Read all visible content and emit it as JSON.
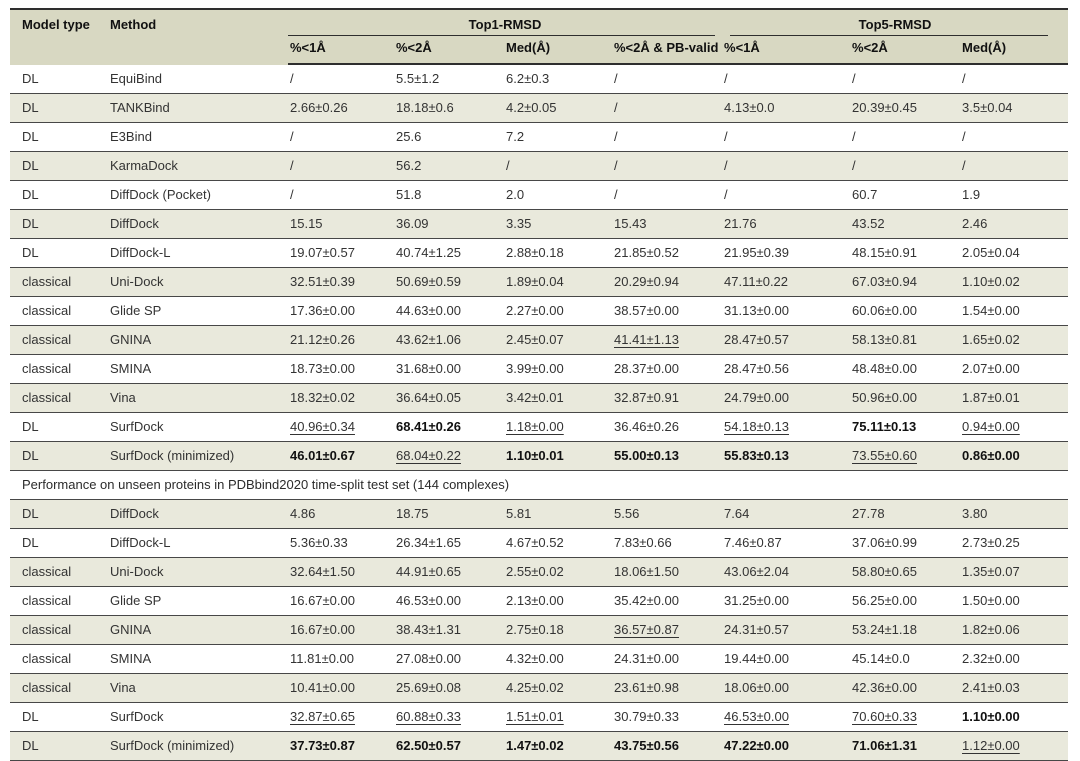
{
  "colors": {
    "header_bg": "#d8d8c2",
    "stripe_bg": "#e9e9dc",
    "rule_dark": "#2e2e2e",
    "row_line": "#474747",
    "text": "#333333",
    "text_strong": "#111111"
  },
  "table": {
    "header": {
      "model_type": "Model type",
      "method": "Method",
      "top1_group": "Top1-RMSD",
      "top5_group": "Top5-RMSD",
      "sub": [
        "%<1Å",
        "%<2Å",
        "Med(Å)",
        "%<2Å & PB-valid",
        "%<1Å",
        "%<2Å",
        "Med(Å)"
      ]
    },
    "rows": [
      {
        "type": "DL",
        "method": "EquiBind",
        "v": [
          "/",
          "5.5±1.2",
          "6.2±0.3",
          "/",
          "/",
          "/",
          "/"
        ]
      },
      {
        "type": "DL",
        "method": "TANKBind",
        "v": [
          "2.66±0.26",
          "18.18±0.6",
          "4.2±0.05",
          "/",
          "4.13±0.0",
          "20.39±0.45",
          "3.5±0.04"
        ]
      },
      {
        "type": "DL",
        "method": "E3Bind",
        "v": [
          "/",
          "25.6",
          "7.2",
          "/",
          "/",
          "/",
          "/"
        ]
      },
      {
        "type": "DL",
        "method": "KarmaDock",
        "v": [
          "/",
          "56.2",
          "/",
          "/",
          "/",
          "/",
          "/"
        ]
      },
      {
        "type": "DL",
        "method": "DiffDock (Pocket)",
        "v": [
          "/",
          "51.8",
          "2.0",
          "/",
          "/",
          "60.7",
          "1.9"
        ]
      },
      {
        "type": "DL",
        "method": "DiffDock",
        "v": [
          "15.15",
          "36.09",
          "3.35",
          "15.43",
          "21.76",
          "43.52",
          "2.46"
        ]
      },
      {
        "type": "DL",
        "method": "DiffDock-L",
        "v": [
          "19.07±0.57",
          "40.74±1.25",
          "2.88±0.18",
          "21.85±0.52",
          "21.95±0.39",
          "48.15±0.91",
          "2.05±0.04"
        ]
      },
      {
        "type": "classical",
        "method": "Uni-Dock",
        "v": [
          "32.51±0.39",
          "50.69±0.59",
          "1.89±0.04",
          "20.29±0.94",
          "47.11±0.22",
          "67.03±0.94",
          "1.10±0.02"
        ]
      },
      {
        "type": "classical",
        "method": "Glide SP",
        "v": [
          "17.36±0.00",
          "44.63±0.00",
          "2.27±0.00",
          "38.57±0.00",
          "31.13±0.00",
          "60.06±0.00",
          "1.54±0.00"
        ]
      },
      {
        "type": "classical",
        "method": "GNINA",
        "v": [
          "21.12±0.26",
          "43.62±1.06",
          "2.45±0.07",
          "41.41±1.13",
          "28.47±0.57",
          "58.13±0.81",
          "1.65±0.02"
        ],
        "s": [
          "n",
          "n",
          "n",
          "u",
          "n",
          "n",
          "n"
        ]
      },
      {
        "type": "classical",
        "method": "SMINA",
        "v": [
          "18.73±0.00",
          "31.68±0.00",
          "3.99±0.00",
          "28.37±0.00",
          "28.47±0.56",
          "48.48±0.00",
          "2.07±0.00"
        ]
      },
      {
        "type": "classical",
        "method": "Vina",
        "v": [
          "18.32±0.02",
          "36.64±0.05",
          "3.42±0.01",
          "32.87±0.91",
          "24.79±0.00",
          "50.96±0.00",
          "1.87±0.01"
        ]
      },
      {
        "type": "DL",
        "method": "SurfDock",
        "v": [
          "40.96±0.34",
          "68.41±0.26",
          "1.18±0.00",
          "36.46±0.26",
          "54.18±0.13",
          "75.11±0.13",
          "0.94±0.00"
        ],
        "s": [
          "u",
          "b",
          "u",
          "n",
          "u",
          "b",
          "u"
        ]
      },
      {
        "type": "DL",
        "method": "SurfDock (minimized)",
        "v": [
          "46.01±0.67",
          "68.04±0.22",
          "1.10±0.01",
          "55.00±0.13",
          "55.83±0.13",
          "73.55±0.60",
          "0.86±0.00"
        ],
        "s": [
          "b",
          "u",
          "b",
          "b",
          "b",
          "u",
          "b"
        ]
      },
      {
        "section": "Performance on unseen proteins in PDBbind2020 time-split test set (144 complexes)"
      },
      {
        "type": "DL",
        "method": "DiffDock",
        "v": [
          "4.86",
          "18.75",
          "5.81",
          "5.56",
          "7.64",
          "27.78",
          "3.80"
        ]
      },
      {
        "type": "DL",
        "method": "DiffDock-L",
        "v": [
          "5.36±0.33",
          "26.34±1.65",
          "4.67±0.52",
          "7.83±0.66",
          "7.46±0.87",
          "37.06±0.99",
          "2.73±0.25"
        ]
      },
      {
        "type": "classical",
        "method": "Uni-Dock",
        "v": [
          "32.64±1.50",
          "44.91±0.65",
          "2.55±0.02",
          "18.06±1.50",
          "43.06±2.04",
          "58.80±0.65",
          "1.35±0.07"
        ]
      },
      {
        "type": "classical",
        "method": "Glide SP",
        "v": [
          "16.67±0.00",
          "46.53±0.00",
          "2.13±0.00",
          "35.42±0.00",
          "31.25±0.00",
          "56.25±0.00",
          "1.50±0.00"
        ]
      },
      {
        "type": "classical",
        "method": "GNINA",
        "v": [
          "16.67±0.00",
          "38.43±1.31",
          "2.75±0.18",
          "36.57±0.87",
          "24.31±0.57",
          "53.24±1.18",
          "1.82±0.06"
        ],
        "s": [
          "n",
          "n",
          "n",
          "u",
          "n",
          "n",
          "n"
        ]
      },
      {
        "type": "classical",
        "method": "SMINA",
        "v": [
          "11.81±0.00",
          "27.08±0.00",
          "4.32±0.00",
          "24.31±0.00",
          "19.44±0.00",
          "45.14±0.0",
          "2.32±0.00"
        ]
      },
      {
        "type": "classical",
        "method": "Vina",
        "v": [
          "10.41±0.00",
          "25.69±0.08",
          "4.25±0.02",
          "23.61±0.98",
          "18.06±0.00",
          "42.36±0.00",
          "2.41±0.03"
        ]
      },
      {
        "type": "DL",
        "method": "SurfDock",
        "v": [
          "32.87±0.65",
          "60.88±0.33",
          "1.51±0.01",
          "30.79±0.33",
          "46.53±0.00",
          "70.60±0.33",
          "1.10±0.00"
        ],
        "s": [
          "u",
          "u",
          "u",
          "n",
          "u",
          "u",
          "b"
        ]
      },
      {
        "type": "DL",
        "method": "SurfDock (minimized)",
        "v": [
          "37.73±0.87",
          "62.50±0.57",
          "1.47±0.02",
          "43.75±0.56",
          "47.22±0.00",
          "71.06±1.31",
          "1.12±0.00"
        ],
        "s": [
          "b",
          "b",
          "b",
          "b",
          "b",
          "b",
          "u"
        ]
      }
    ]
  }
}
